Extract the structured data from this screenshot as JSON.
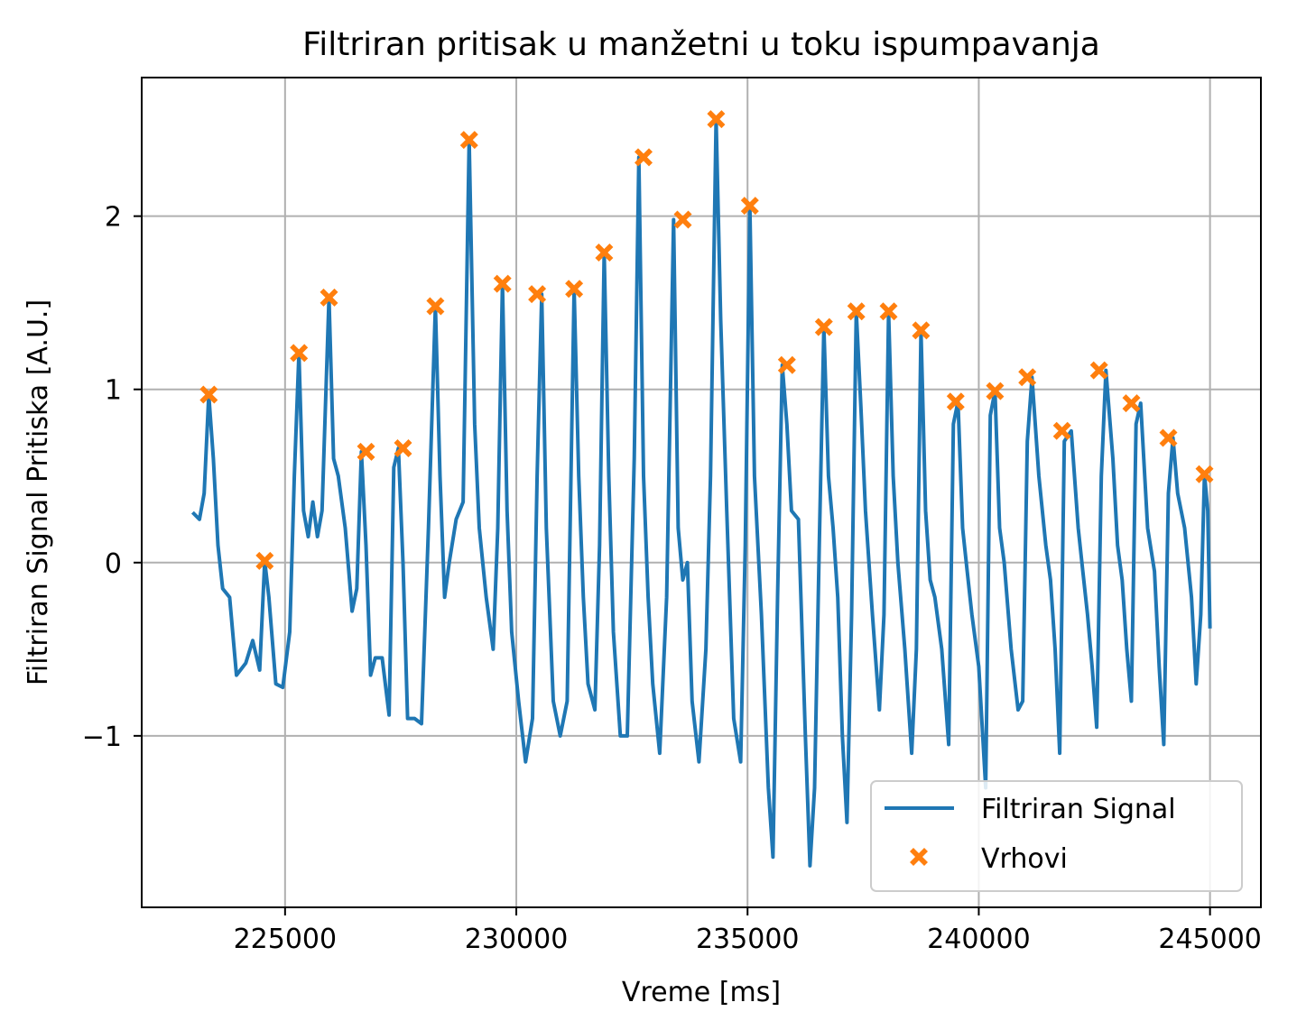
{
  "chart_data": {
    "type": "line",
    "title": "Filtriran pritisak u manžetni u toku ispumpavanja",
    "xlabel": "Vreme [ms]",
    "ylabel": "Filtriran Signal Pritiska [A.U.]",
    "xlim": [
      221900,
      246100
    ],
    "ylim": [
      -1.99,
      2.8
    ],
    "x_ticks": [
      225000,
      230000,
      235000,
      240000,
      245000
    ],
    "x_tick_labels": [
      "225000",
      "230000",
      "235000",
      "240000",
      "245000"
    ],
    "y_ticks": [
      -1,
      0,
      1,
      2
    ],
    "y_tick_labels": [
      "−1",
      "0",
      "1",
      "2"
    ],
    "grid": true,
    "legend_position": "lower right",
    "colors": {
      "signal": "#1f77b4",
      "peaks": "#ff7f0e",
      "grid": "#b0b0b0"
    },
    "series": [
      {
        "name": "Filtriran Signal",
        "kind": "line",
        "x": [
          223000,
          223150,
          223250,
          223350,
          223450,
          223550,
          223650,
          223800,
          223950,
          224150,
          224300,
          224450,
          224560,
          224650,
          224800,
          224950,
          225100,
          225200,
          225300,
          225400,
          225500,
          225600,
          225700,
          225800,
          225950,
          226050,
          226150,
          226300,
          226450,
          226550,
          226650,
          226750,
          226850,
          226950,
          227100,
          227250,
          227350,
          227450,
          227550,
          227650,
          227800,
          227950,
          228100,
          228250,
          228350,
          228450,
          228550,
          228700,
          228850,
          228980,
          229100,
          229200,
          229350,
          229500,
          229600,
          229700,
          229800,
          229900,
          230050,
          230200,
          230350,
          230450,
          230550,
          230650,
          230800,
          230950,
          231100,
          231250,
          231350,
          231450,
          231550,
          231700,
          231800,
          231900,
          232000,
          232100,
          232250,
          232400,
          232550,
          232650,
          232750,
          232850,
          232950,
          233100,
          233250,
          233400,
          233500,
          233600,
          233700,
          233800,
          233950,
          234100,
          234200,
          234320,
          234420,
          234550,
          234700,
          234850,
          234950,
          235050,
          235150,
          235300,
          235450,
          235550,
          235650,
          235750,
          235850,
          235950,
          236100,
          236250,
          236350,
          236450,
          236550,
          236650,
          236750,
          236850,
          236950,
          237050,
          237150,
          237250,
          237350,
          237450,
          237550,
          237700,
          237850,
          237950,
          238050,
          238150,
          238250,
          238400,
          238550,
          238650,
          238750,
          238850,
          238950,
          239050,
          239200,
          239350,
          239450,
          239550,
          239650,
          239750,
          239850,
          240000,
          240150,
          240250,
          240350,
          240450,
          240550,
          240700,
          240850,
          240950,
          241050,
          241150,
          241300,
          241450,
          241550,
          241650,
          241750,
          241850,
          242000,
          242150,
          242250,
          242350,
          242450,
          242550,
          242650,
          242750,
          242900,
          243000,
          243100,
          243200,
          243300,
          243400,
          243500,
          243650,
          243800,
          243900,
          244000,
          244100,
          244200,
          244300,
          244450,
          244600,
          244700,
          244800,
          244880,
          244950,
          245000
        ],
        "y": [
          0.29,
          0.25,
          0.4,
          0.97,
          0.6,
          0.1,
          -0.15,
          -0.2,
          -0.65,
          -0.58,
          -0.45,
          -0.62,
          0.01,
          -0.2,
          -0.7,
          -0.72,
          -0.4,
          0.5,
          1.21,
          0.3,
          0.15,
          0.35,
          0.15,
          0.3,
          1.53,
          0.6,
          0.5,
          0.2,
          -0.28,
          -0.15,
          0.64,
          0.1,
          -0.65,
          -0.55,
          -0.55,
          -0.88,
          0.55,
          0.66,
          0.0,
          -0.9,
          -0.9,
          -0.93,
          0.2,
          1.48,
          0.5,
          -0.2,
          0.0,
          0.25,
          0.35,
          2.44,
          0.8,
          0.2,
          -0.2,
          -0.5,
          0.2,
          1.61,
          0.3,
          -0.4,
          -0.8,
          -1.15,
          -0.9,
          0.5,
          1.55,
          0.2,
          -0.8,
          -1.0,
          -0.8,
          1.58,
          0.5,
          -0.2,
          -0.7,
          -0.85,
          0.1,
          1.79,
          0.5,
          -0.4,
          -1.0,
          -1.0,
          0.6,
          2.34,
          0.5,
          -0.2,
          -0.7,
          -1.1,
          -0.2,
          1.98,
          0.2,
          -0.1,
          0.0,
          -0.8,
          -1.15,
          -0.5,
          0.5,
          2.56,
          1.4,
          0.3,
          -0.9,
          -1.15,
          0.1,
          2.06,
          0.5,
          -0.3,
          -1.3,
          -1.7,
          -0.2,
          1.14,
          0.8,
          0.3,
          0.25,
          -1.0,
          -1.75,
          -1.3,
          0.1,
          1.36,
          0.5,
          0.2,
          -0.2,
          -1.0,
          -1.5,
          -0.3,
          1.45,
          0.9,
          0.3,
          -0.3,
          -0.85,
          -0.3,
          1.45,
          0.5,
          0.0,
          -0.5,
          -1.1,
          -0.5,
          1.34,
          0.3,
          -0.1,
          -0.2,
          -0.5,
          -1.05,
          0.8,
          0.93,
          0.2,
          -0.05,
          -0.3,
          -0.6,
          -1.3,
          0.85,
          0.99,
          0.2,
          0.0,
          -0.5,
          -0.85,
          -0.8,
          0.7,
          1.07,
          0.5,
          0.1,
          -0.1,
          -0.5,
          -1.1,
          0.7,
          0.76,
          0.2,
          -0.05,
          -0.3,
          -0.6,
          -0.95,
          0.5,
          1.11,
          0.6,
          0.1,
          -0.1,
          -0.5,
          -0.8,
          0.8,
          0.92,
          0.2,
          -0.05,
          -0.6,
          -1.05,
          0.4,
          0.72,
          0.4,
          0.2,
          -0.2,
          -0.7,
          -0.3,
          0.51,
          0.3,
          -0.38
        ]
      },
      {
        "name": "Vrhovi",
        "kind": "markers",
        "x": [
          223350,
          224560,
          225300,
          225950,
          226750,
          227550,
          228250,
          228980,
          229700,
          230450,
          231250,
          231900,
          232750,
          233600,
          234320,
          235050,
          235850,
          236650,
          237350,
          238050,
          238750,
          239500,
          240350,
          241050,
          241800,
          242600,
          243300,
          244100,
          244880
        ],
        "y": [
          0.97,
          0.01,
          1.21,
          1.53,
          0.64,
          0.66,
          1.48,
          2.44,
          1.61,
          1.55,
          1.58,
          1.79,
          2.34,
          1.98,
          2.56,
          2.06,
          1.14,
          1.36,
          1.45,
          1.45,
          1.34,
          0.93,
          0.99,
          1.07,
          0.76,
          1.11,
          0.92,
          0.72,
          0.51
        ]
      }
    ]
  }
}
